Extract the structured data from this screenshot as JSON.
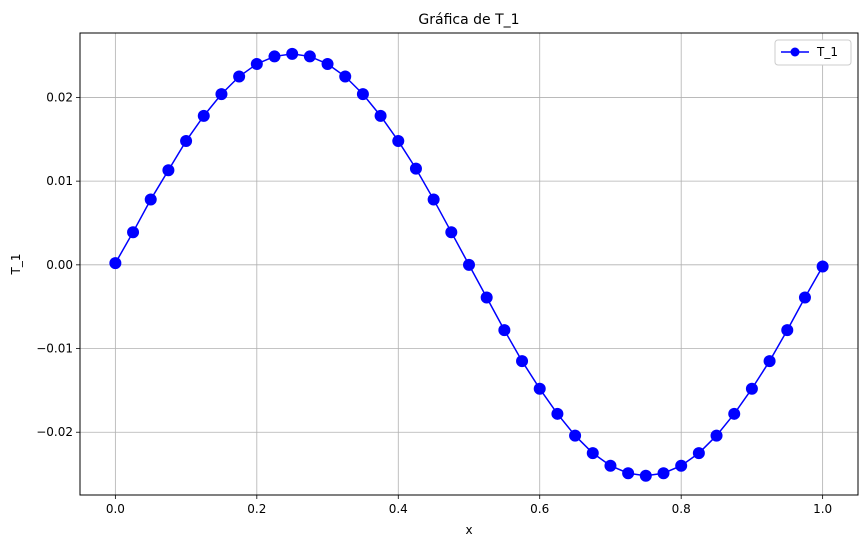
{
  "chart_data": {
    "type": "line",
    "title": "Gráfica de T_1",
    "xlabel": "x",
    "ylabel": "T_1",
    "xlim": [
      -0.05,
      1.05
    ],
    "ylim": [
      -0.0275,
      0.0277
    ],
    "xticks": [
      0.0,
      0.2,
      0.4,
      0.6,
      0.8,
      1.0
    ],
    "xtick_labels": [
      "0.0",
      "0.2",
      "0.4",
      "0.6",
      "0.8",
      "1.0"
    ],
    "yticks": [
      -0.02,
      -0.01,
      0.0,
      0.01,
      0.02
    ],
    "ytick_labels": [
      "−0.02",
      "−0.01",
      "0.00",
      "0.01",
      "0.02"
    ],
    "grid": true,
    "legend_position": "top-right",
    "series": [
      {
        "name": "T_1",
        "color": "#0000ff",
        "marker": "circle",
        "x": [
          0.0,
          0.025,
          0.05,
          0.075,
          0.1,
          0.125,
          0.15,
          0.175,
          0.2,
          0.225,
          0.25,
          0.275,
          0.3,
          0.325,
          0.35,
          0.375,
          0.4,
          0.425,
          0.45,
          0.475,
          0.5,
          0.525,
          0.55,
          0.575,
          0.6,
          0.625,
          0.65,
          0.675,
          0.7,
          0.725,
          0.75,
          0.775,
          0.8,
          0.825,
          0.85,
          0.875,
          0.9,
          0.925,
          0.95,
          0.975,
          1.0
        ],
        "y": [
          0.0002,
          0.0039,
          0.0078,
          0.0113,
          0.0148,
          0.0178,
          0.0204,
          0.0225,
          0.024,
          0.0249,
          0.0252,
          0.0249,
          0.024,
          0.0225,
          0.0204,
          0.0178,
          0.0148,
          0.0115,
          0.0078,
          0.0039,
          0.0,
          -0.0039,
          -0.0078,
          -0.0115,
          -0.0148,
          -0.0178,
          -0.0204,
          -0.0225,
          -0.024,
          -0.0249,
          -0.0252,
          -0.0249,
          -0.024,
          -0.0225,
          -0.0204,
          -0.0178,
          -0.0148,
          -0.0115,
          -0.0078,
          -0.0039,
          -0.0002
        ]
      }
    ]
  }
}
